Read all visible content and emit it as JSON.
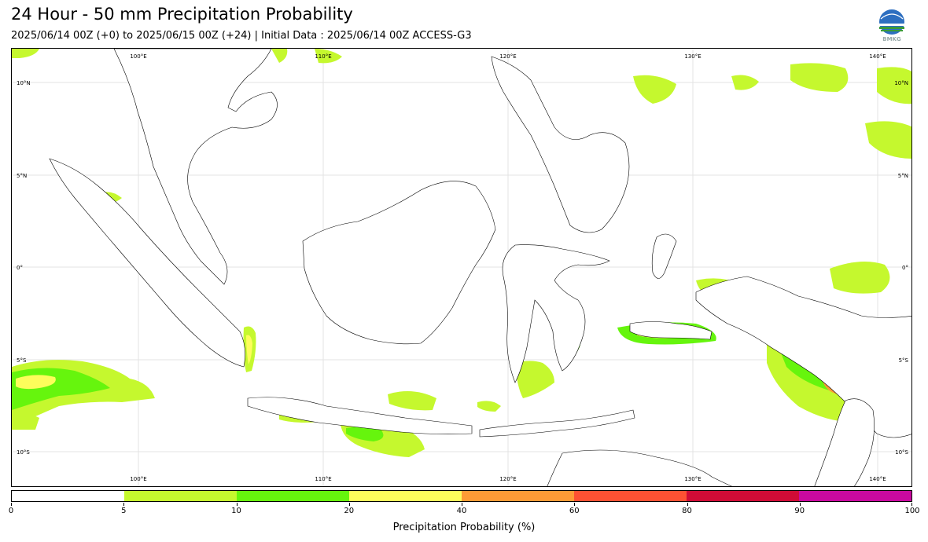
{
  "header": {
    "title": "24 Hour - 50 mm Precipitation Probability",
    "subtitle": "2025/06/14 00Z (+0) to 2025/06/15 00Z (+24) | Initial Data : 2025/06/14 00Z ACCESS-G3",
    "logo_text": "BMKG"
  },
  "map": {
    "region": "Indonesia",
    "lon_labels_top": [
      "100°E",
      "110°E",
      "120°E",
      "130°E",
      "140°E"
    ],
    "lon_labels_bottom": [
      "100°E",
      "110°E",
      "120°E",
      "130°E",
      "140°E"
    ],
    "lat_labels": [
      "10°N",
      "5°N",
      "0°",
      "5°S",
      "10°S"
    ],
    "land_color": "#ffffff",
    "coast_color": "#000000"
  },
  "colorbar": {
    "label": "Precipitation Probability (%)",
    "ticks": [
      "0",
      "5",
      "10",
      "20",
      "40",
      "60",
      "80",
      "90",
      "100"
    ],
    "colors": [
      "#ffffff",
      "#c5f82e",
      "#66f50d",
      "#fdfd5b",
      "#fd9b36",
      "#fd5133",
      "#cf0c36",
      "#c9099f"
    ]
  }
}
